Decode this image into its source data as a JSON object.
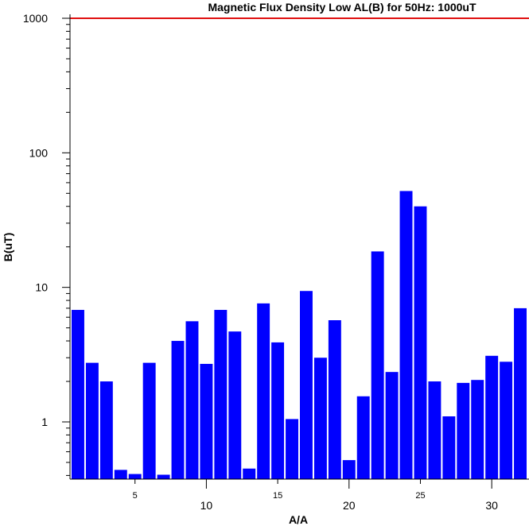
{
  "chart_data": {
    "type": "bar",
    "title": "Magnetic Flux Density Low AL(B) for 50Hz: 1000uT",
    "xlabel": "A/A",
    "ylabel": "B(uT)",
    "y_scale": "log",
    "ylim": [
      0.4,
      1000
    ],
    "xlim": [
      0.5,
      32.5
    ],
    "y_ticks": [
      1,
      10,
      100,
      1000
    ],
    "y_tick_labels": [
      "1",
      "10",
      "100",
      "1000"
    ],
    "x_ticks_major": [
      10,
      20,
      30
    ],
    "x_tick_major_labels": [
      "10",
      "20",
      "30"
    ],
    "x_ticks_minor": [
      5,
      15,
      25
    ],
    "x_tick_minor_labels": [
      "5",
      "15",
      "25"
    ],
    "limit_line": {
      "value": 1000,
      "color": "#e01010"
    },
    "bar_color": "#0000ff",
    "grid": false,
    "x": [
      1,
      2,
      3,
      4,
      5,
      6,
      7,
      8,
      9,
      10,
      11,
      12,
      13,
      14,
      15,
      16,
      17,
      18,
      19,
      20,
      21,
      22,
      23,
      24,
      25,
      26,
      27,
      28,
      29,
      30,
      31,
      32
    ],
    "values": [
      6.8,
      2.75,
      2.0,
      0.44,
      0.41,
      2.75,
      0.405,
      4.0,
      5.6,
      2.7,
      6.8,
      4.7,
      0.45,
      7.6,
      3.9,
      1.05,
      9.4,
      3.0,
      5.7,
      0.52,
      1.55,
      18.5,
      2.35,
      52.0,
      40.0,
      2.0,
      1.1,
      1.95,
      2.05,
      3.1,
      2.8,
      7.0
    ]
  }
}
